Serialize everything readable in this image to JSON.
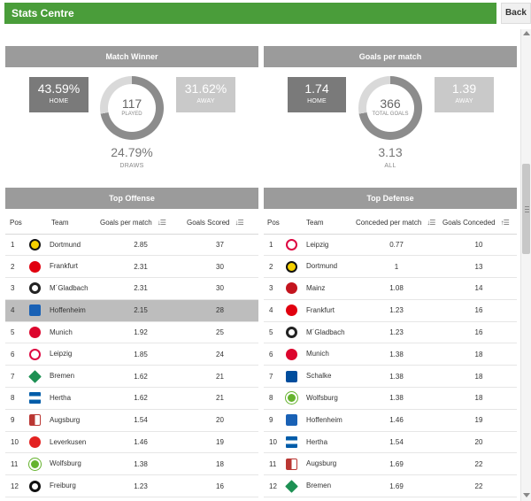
{
  "header": {
    "title": "Stats Centre",
    "back_label": "Back"
  },
  "match_winner": {
    "heading": "Match Winner",
    "home_pct": "43.59%",
    "home_label": "HOME",
    "away_pct": "31.62%",
    "away_label": "AWAY",
    "played": "117",
    "played_label": "PLAYED",
    "draws_pct": "24.79%",
    "draws_label": "DRAWS"
  },
  "goals_per_match": {
    "heading": "Goals per match",
    "home": "1.74",
    "home_label": "HOME",
    "away": "1.39",
    "away_label": "AWAY",
    "total": "366",
    "total_label": "TOTAL GOALS",
    "all": "3.13",
    "all_label": "ALL"
  },
  "top_offense": {
    "heading": "Top Offense",
    "columns": [
      "Pos",
      "Team",
      "Goals per match",
      "Goals Scored"
    ],
    "rows": [
      {
        "pos": "1",
        "team": "Dortmund",
        "gpm": "2.85",
        "goals": "37",
        "crest": "dortmund"
      },
      {
        "pos": "2",
        "team": "Frankfurt",
        "gpm": "2.31",
        "goals": "30",
        "crest": "frankfurt"
      },
      {
        "pos": "3",
        "team": "M´Gladbach",
        "gpm": "2.31",
        "goals": "30",
        "crest": "gladbach"
      },
      {
        "pos": "4",
        "team": "Hoffenheim",
        "gpm": "2.15",
        "goals": "28",
        "crest": "hoffenheim"
      },
      {
        "pos": "5",
        "team": "Munich",
        "gpm": "1.92",
        "goals": "25",
        "crest": "munich"
      },
      {
        "pos": "6",
        "team": "Leipzig",
        "gpm": "1.85",
        "goals": "24",
        "crest": "leipzig"
      },
      {
        "pos": "7",
        "team": "Bremen",
        "gpm": "1.62",
        "goals": "21",
        "crest": "bremen"
      },
      {
        "pos": "8",
        "team": "Hertha",
        "gpm": "1.62",
        "goals": "21",
        "crest": "hertha"
      },
      {
        "pos": "9",
        "team": "Augsburg",
        "gpm": "1.54",
        "goals": "20",
        "crest": "augsburg"
      },
      {
        "pos": "10",
        "team": "Leverkusen",
        "gpm": "1.46",
        "goals": "19",
        "crest": "leverkusen"
      },
      {
        "pos": "11",
        "team": "Wolfsburg",
        "gpm": "1.38",
        "goals": "18",
        "crest": "wolfsburg"
      },
      {
        "pos": "12",
        "team": "Freiburg",
        "gpm": "1.23",
        "goals": "16",
        "crest": "freiburg"
      }
    ]
  },
  "top_defense": {
    "heading": "Top Defense",
    "columns": [
      "Pos",
      "Team",
      "Conceded per match",
      "Goals Conceded"
    ],
    "rows": [
      {
        "pos": "1",
        "team": "Leipzig",
        "cpm": "0.77",
        "conceded": "10",
        "crest": "leipzig"
      },
      {
        "pos": "2",
        "team": "Dortmund",
        "cpm": "1",
        "conceded": "13",
        "crest": "dortmund"
      },
      {
        "pos": "3",
        "team": "Mainz",
        "cpm": "1.08",
        "conceded": "14",
        "crest": "mainz"
      },
      {
        "pos": "4",
        "team": "Frankfurt",
        "cpm": "1.23",
        "conceded": "16",
        "crest": "frankfurt"
      },
      {
        "pos": "5",
        "team": "M´Gladbach",
        "cpm": "1.23",
        "conceded": "16",
        "crest": "gladbach"
      },
      {
        "pos": "6",
        "team": "Munich",
        "cpm": "1.38",
        "conceded": "18",
        "crest": "munich"
      },
      {
        "pos": "7",
        "team": "Schalke",
        "cpm": "1.38",
        "conceded": "18",
        "crest": "schalke"
      },
      {
        "pos": "8",
        "team": "Wolfsburg",
        "cpm": "1.38",
        "conceded": "18",
        "crest": "wolfsburg"
      },
      {
        "pos": "9",
        "team": "Hoffenheim",
        "cpm": "1.46",
        "conceded": "19",
        "crest": "hoffenheim"
      },
      {
        "pos": "10",
        "team": "Hertha",
        "cpm": "1.54",
        "conceded": "20",
        "crest": "hertha"
      },
      {
        "pos": "11",
        "team": "Augsburg",
        "cpm": "1.69",
        "conceded": "22",
        "crest": "augsburg"
      },
      {
        "pos": "12",
        "team": "Bremen",
        "cpm": "1.69",
        "conceded": "22",
        "crest": "bremen"
      }
    ]
  },
  "colors": {
    "header_green": "#4a9d3a",
    "panel_grey": "#9b9b9b",
    "highlight_row": "#bdbdbd",
    "dortmund": "#f5d000",
    "frankfurt": "#e1000f",
    "gladbach": "#222222",
    "hoffenheim": "#1961b5",
    "munich": "#dc052d",
    "leipzig": "#dd0741",
    "bremen": "#1d9053",
    "hertha": "#005ca9",
    "augsburg": "#ba3733",
    "leverkusen": "#e32221",
    "wolfsburg": "#65b32e",
    "freiburg": "#111111",
    "mainz": "#c3141e",
    "schalke": "#004d9d"
  }
}
